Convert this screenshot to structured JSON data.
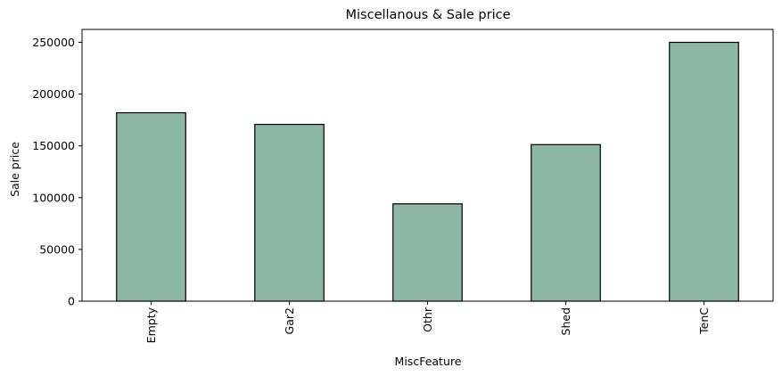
{
  "chart_data": {
    "type": "bar",
    "title": "Miscellanous & Sale price",
    "xlabel": "MiscFeature",
    "ylabel": "Sale price",
    "categories": [
      "Empty",
      "Gar2",
      "Othr",
      "Shed",
      "TenC"
    ],
    "values": [
      182000,
      170750,
      94000,
      151200,
      250000
    ],
    "ylim": [
      0,
      262500
    ],
    "yticks": [
      0,
      50000,
      100000,
      150000,
      200000,
      250000
    ],
    "ytick_labels": [
      "0",
      "50000",
      "100000",
      "150000",
      "200000",
      "250000"
    ],
    "grid": false,
    "legend": "none",
    "bar_color": "#8db8a8",
    "edge_color": "#000000"
  }
}
